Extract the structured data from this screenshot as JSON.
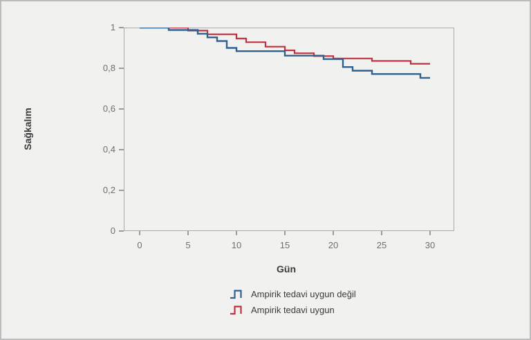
{
  "figure": {
    "background_color": "#f1f1f0",
    "outer_border_color": "#bcbcbc",
    "frame_color": "#a9a9a9"
  },
  "chart_data": {
    "type": "line",
    "subtype": "kaplan-meier-step",
    "title": "",
    "xlabel": "Gün",
    "ylabel": "Sağkalım",
    "xlim": [
      -1.65,
      32.5
    ],
    "ylim": [
      0,
      1
    ],
    "grid": false,
    "legend_position": "bottom-center",
    "x_ticks": [
      {
        "value": 0,
        "label": "0"
      },
      {
        "value": 5,
        "label": "5"
      },
      {
        "value": 10,
        "label": "10"
      },
      {
        "value": 15,
        "label": "15"
      },
      {
        "value": 20,
        "label": "20"
      },
      {
        "value": 25,
        "label": "25"
      },
      {
        "value": 30,
        "label": "30"
      }
    ],
    "y_ticks": [
      {
        "value": 0,
        "label": "0"
      },
      {
        "value": 0.2,
        "label": "0,2"
      },
      {
        "value": 0.4,
        "label": "0,4"
      },
      {
        "value": 0.6,
        "label": "0,6"
      },
      {
        "value": 0.8,
        "label": "0,8"
      },
      {
        "value": 1,
        "label": "1"
      }
    ],
    "series": [
      {
        "name": "Ampirik tedavi uygun değil",
        "color": "#2f618f",
        "stroke_width": 2.4,
        "points": [
          [
            0,
            1.0
          ],
          [
            3,
            1.0
          ],
          [
            3,
            0.988
          ],
          [
            6,
            0.988
          ],
          [
            6,
            0.97
          ],
          [
            7,
            0.97
          ],
          [
            7,
            0.952
          ],
          [
            8,
            0.952
          ],
          [
            8,
            0.934
          ],
          [
            9,
            0.934
          ],
          [
            9,
            0.9
          ],
          [
            10,
            0.9
          ],
          [
            10,
            0.884
          ],
          [
            15,
            0.884
          ],
          [
            15,
            0.862
          ],
          [
            19,
            0.862
          ],
          [
            19,
            0.845
          ],
          [
            21,
            0.845
          ],
          [
            21,
            0.806
          ],
          [
            22,
            0.806
          ],
          [
            22,
            0.788
          ],
          [
            24,
            0.788
          ],
          [
            24,
            0.772
          ],
          [
            29,
            0.772
          ],
          [
            29,
            0.753
          ],
          [
            30,
            0.753
          ]
        ]
      },
      {
        "name": "Ampirik tedavi uygun",
        "color": "#c22f3f",
        "stroke_width": 2.2,
        "points": [
          [
            0,
            1.0
          ],
          [
            5,
            1.0
          ],
          [
            5,
            0.985
          ],
          [
            7,
            0.985
          ],
          [
            7,
            0.967
          ],
          [
            10,
            0.967
          ],
          [
            10,
            0.946
          ],
          [
            11,
            0.946
          ],
          [
            11,
            0.928
          ],
          [
            13,
            0.928
          ],
          [
            13,
            0.906
          ],
          [
            15,
            0.906
          ],
          [
            15,
            0.888
          ],
          [
            16,
            0.888
          ],
          [
            16,
            0.874
          ],
          [
            18,
            0.874
          ],
          [
            18,
            0.86
          ],
          [
            20,
            0.86
          ],
          [
            20,
            0.848
          ],
          [
            24,
            0.848
          ],
          [
            24,
            0.836
          ],
          [
            28,
            0.836
          ],
          [
            28,
            0.822
          ],
          [
            30,
            0.822
          ]
        ]
      }
    ]
  }
}
